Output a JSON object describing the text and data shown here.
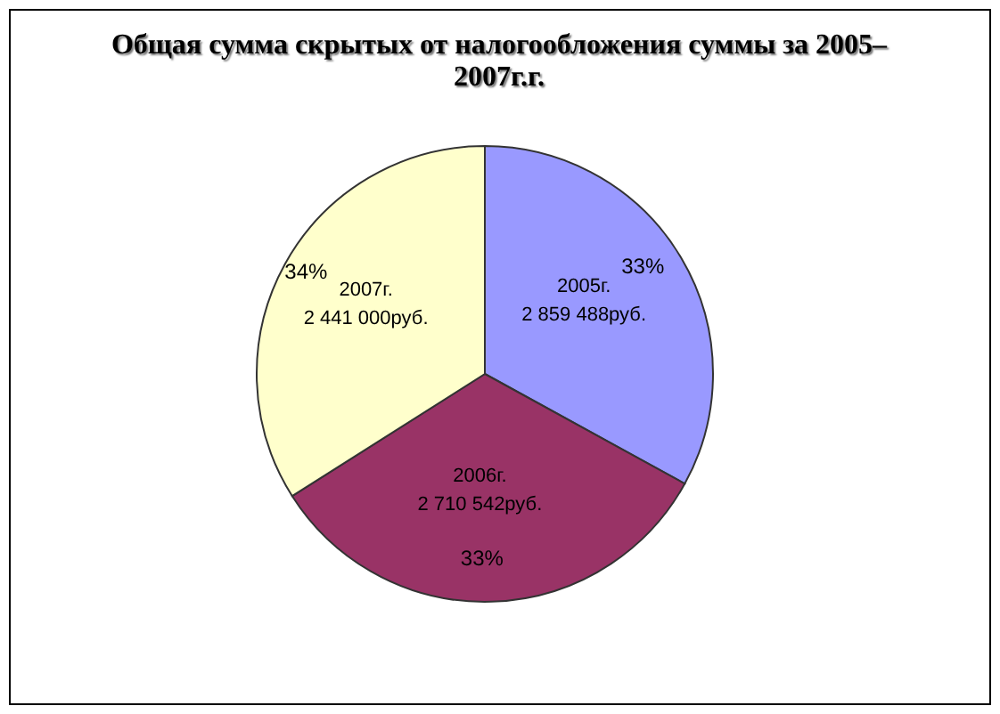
{
  "chart_data": {
    "type": "pie",
    "title": "Общая сумма скрытых от налогообложения суммы за 2005–2007г.г.",
    "categories": [
      "2005г.",
      "2006г.",
      "2007г."
    ],
    "values": [
      33,
      33,
      34
    ],
    "colors": [
      "#9999ff",
      "#993366",
      "#ffffcc"
    ],
    "value_labels": [
      "33%",
      "33%",
      "34%"
    ],
    "annotations": [
      "2 859 488руб.",
      "2 710 542руб.",
      "2 441 000руб."
    ],
    "legend": false
  }
}
